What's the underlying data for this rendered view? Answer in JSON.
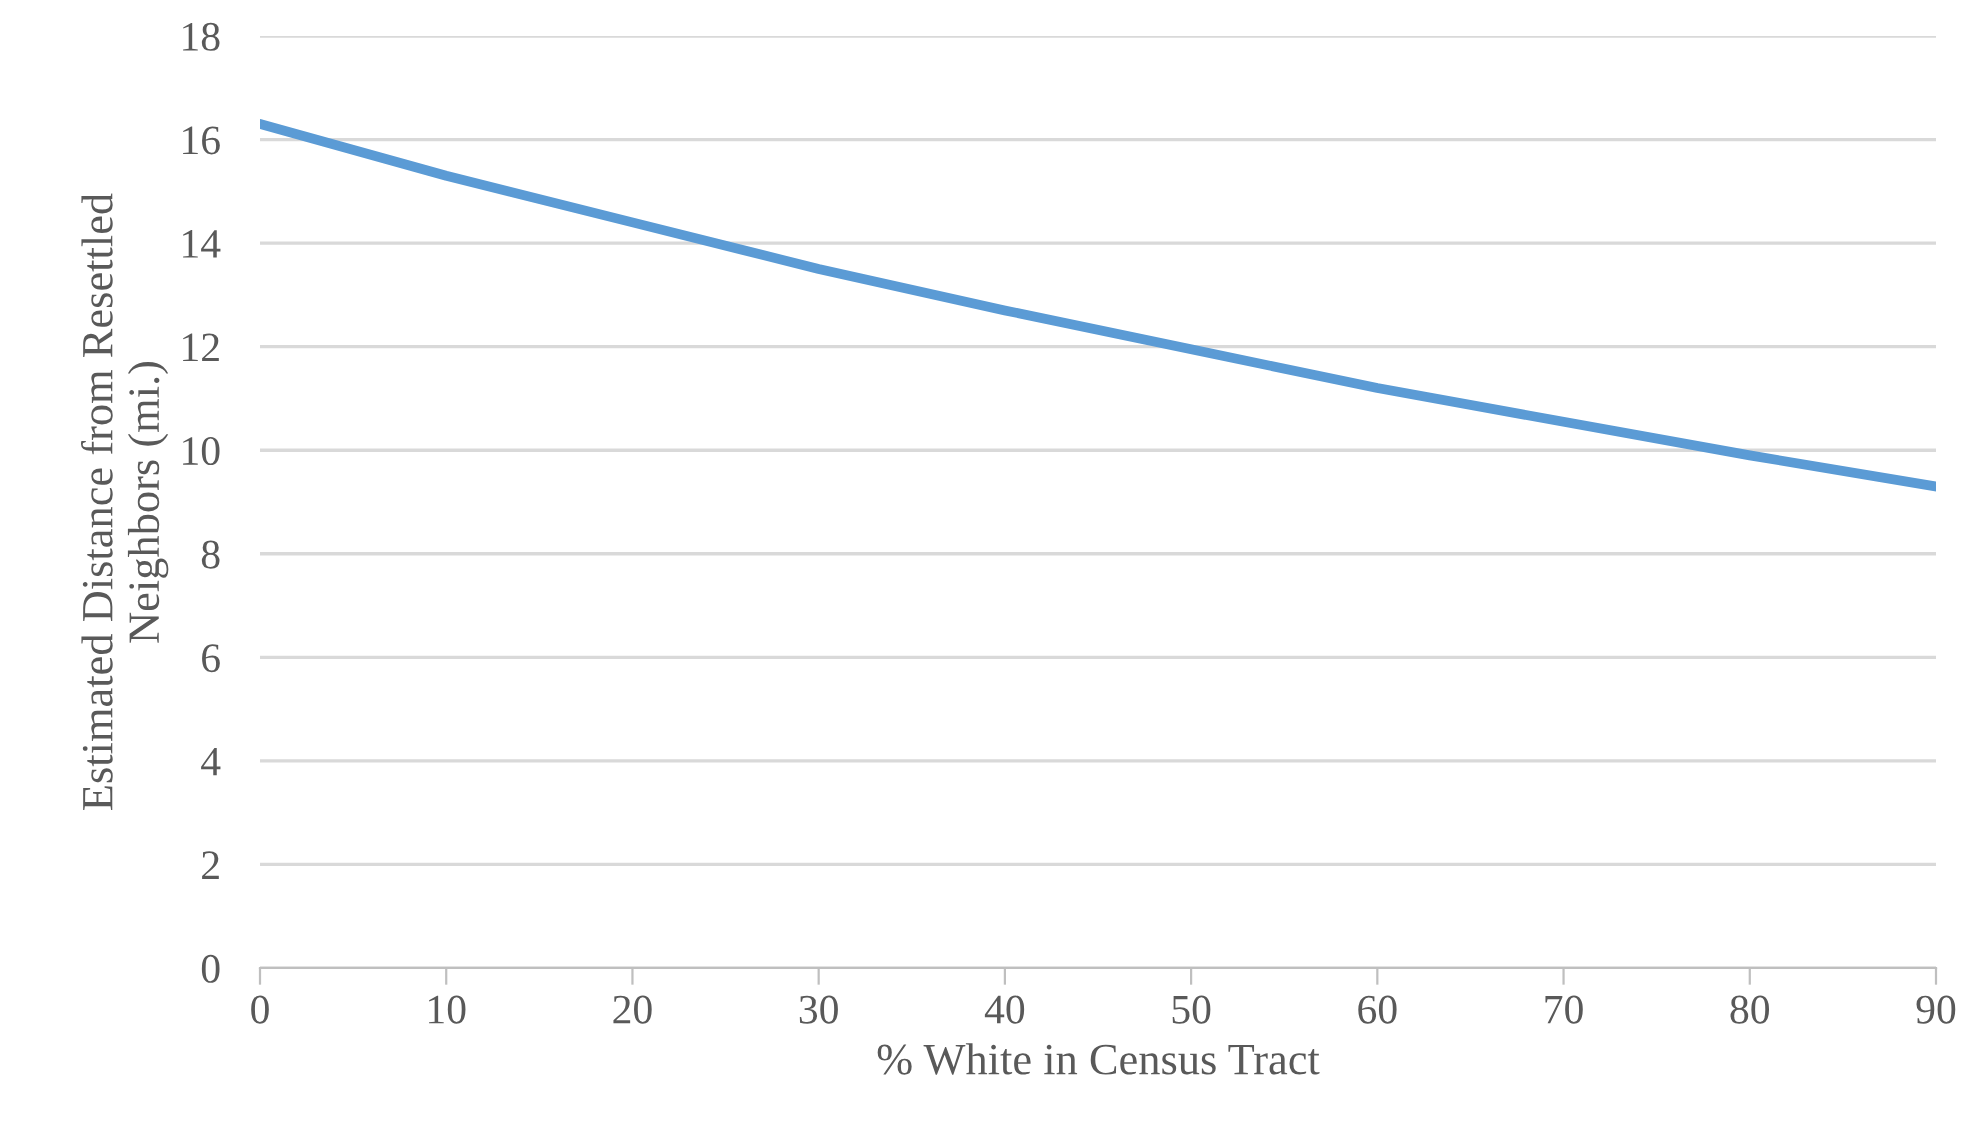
{
  "chart_data": {
    "type": "line",
    "xlabel": "% White in Census Tract",
    "ylabel": "Estimated Distance from Resettled\nNeighbors (mi.)",
    "x": [
      0,
      10,
      20,
      30,
      40,
      50,
      60,
      70,
      80,
      90
    ],
    "series": [
      {
        "color": "#5b9bd5",
        "values": [
          16.3,
          15.3,
          14.4,
          13.5,
          12.7,
          11.95,
          11.2,
          10.55,
          9.9,
          9.3
        ]
      }
    ],
    "xlim": [
      0,
      90
    ],
    "xticks": [
      0,
      10,
      20,
      30,
      40,
      50,
      60,
      70,
      80,
      90
    ],
    "ylim": [
      0,
      18
    ],
    "yticks": [
      0,
      2,
      4,
      6,
      8,
      10,
      12,
      14,
      16,
      18
    ],
    "grid": "y",
    "legend": false,
    "marker": "none",
    "line_style": "solid"
  }
}
